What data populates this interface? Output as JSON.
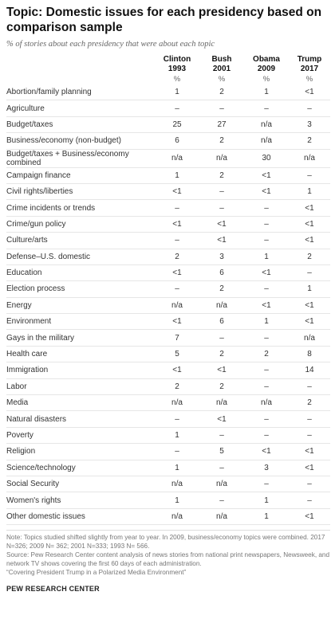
{
  "title": "Topic: Domestic issues for each presidency based on comparison sample",
  "subtitle": "% of stories about each presidency that were about each topic",
  "columns": [
    {
      "name": "Clinton",
      "year": "1993",
      "unit": "%"
    },
    {
      "name": "Bush",
      "year": "2001",
      "unit": "%"
    },
    {
      "name": "Obama",
      "year": "2009",
      "unit": "%"
    },
    {
      "name": "Trump",
      "year": "2017",
      "unit": "%"
    }
  ],
  "rows": [
    {
      "topic": "Abortion/family planning",
      "values": [
        "1",
        "2",
        "1",
        "<1"
      ]
    },
    {
      "topic": "Agriculture",
      "values": [
        "–",
        "–",
        "–",
        "–"
      ]
    },
    {
      "topic": "Budget/taxes",
      "values": [
        "25",
        "27",
        "n/a",
        "3"
      ]
    },
    {
      "topic": "Business/economy (non-budget)",
      "values": [
        "6",
        "2",
        "n/a",
        "2"
      ]
    },
    {
      "topic": "Budget/taxes + Business/economy combined",
      "values": [
        "n/a",
        "n/a",
        "30",
        "n/a"
      ]
    },
    {
      "topic": "Campaign finance",
      "values": [
        "1",
        "2",
        "<1",
        "–"
      ]
    },
    {
      "topic": "Civil rights/liberties",
      "values": [
        "<1",
        "–",
        "<1",
        "1"
      ]
    },
    {
      "topic": "Crime incidents or trends",
      "values": [
        "–",
        "–",
        "–",
        "<1"
      ]
    },
    {
      "topic": "Crime/gun policy",
      "values": [
        "<1",
        "<1",
        "–",
        "<1"
      ]
    },
    {
      "topic": "Culture/arts",
      "values": [
        "–",
        "<1",
        "–",
        "<1"
      ]
    },
    {
      "topic": "Defense–U.S. domestic",
      "values": [
        "2",
        "3",
        "1",
        "2"
      ]
    },
    {
      "topic": "Education",
      "values": [
        "<1",
        "6",
        "<1",
        "–"
      ]
    },
    {
      "topic": "Election process",
      "values": [
        "–",
        "2",
        "–",
        "1"
      ]
    },
    {
      "topic": "Energy",
      "values": [
        "n/a",
        "n/a",
        "<1",
        "<1"
      ]
    },
    {
      "topic": "Environment",
      "values": [
        "<1",
        "6",
        "1",
        "<1"
      ]
    },
    {
      "topic": "Gays in the military",
      "values": [
        "7",
        "–",
        "–",
        "n/a"
      ]
    },
    {
      "topic": "Health care",
      "values": [
        "5",
        "2",
        "2",
        "8"
      ]
    },
    {
      "topic": "Immigration",
      "values": [
        "<1",
        "<1",
        "–",
        "14"
      ]
    },
    {
      "topic": "Labor",
      "values": [
        "2",
        "2",
        "–",
        "–"
      ]
    },
    {
      "topic": "Media",
      "values": [
        "n/a",
        "n/a",
        "n/a",
        "2"
      ]
    },
    {
      "topic": "Natural disasters",
      "values": [
        "–",
        "<1",
        "–",
        "–"
      ]
    },
    {
      "topic": "Poverty",
      "values": [
        "1",
        "–",
        "–",
        "–"
      ]
    },
    {
      "topic": "Religion",
      "values": [
        "–",
        "5",
        "<1",
        "<1"
      ]
    },
    {
      "topic": "Science/technology",
      "values": [
        "1",
        "–",
        "3",
        "<1"
      ]
    },
    {
      "topic": "Social Security",
      "values": [
        "n/a",
        "n/a",
        "–",
        "–"
      ]
    },
    {
      "topic": "Women's rights",
      "values": [
        "1",
        "–",
        "1",
        "–"
      ]
    },
    {
      "topic": "Other domestic issues",
      "values": [
        "n/a",
        "n/a",
        "1",
        "<1"
      ]
    }
  ],
  "notes": [
    "Note: Topics studied shifted slightly from year to year. In 2009, business/economy topics were combined. 2017 N=326; 2009 N= 362; 2001 N=333; 1993 N= 566.",
    "Source: Pew Research Center content analysis of news stories from national print newspapers, Newsweek, and network TV shows covering the first 60 days of each administration.",
    "“Covering President Trump in a Polarized Media Environment”"
  ],
  "brand": "PEW RESEARCH CENTER"
}
